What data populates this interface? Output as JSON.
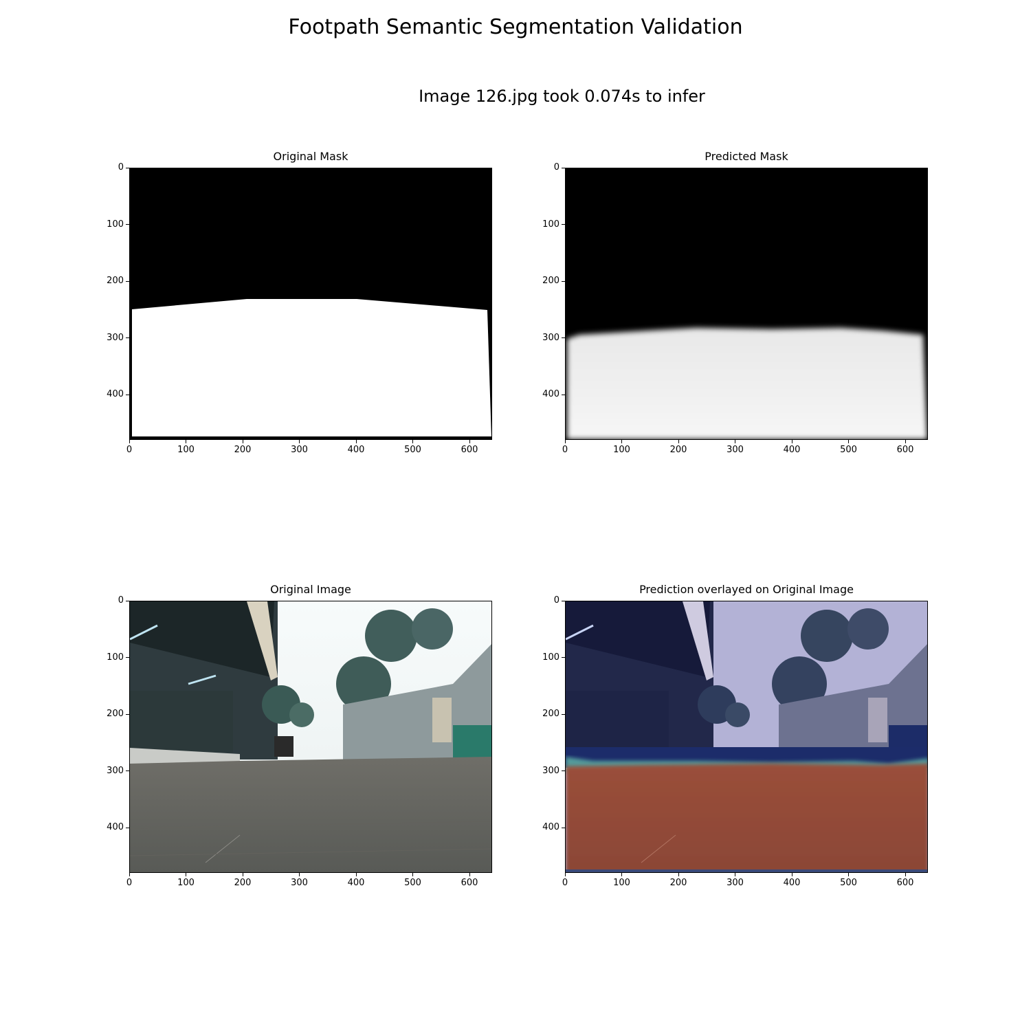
{
  "suptitle": "Footpath Semantic Segmentation Validation",
  "subtitle": "Image 126.jpg took 0.074s to infer",
  "panels": [
    {
      "title": "Original Mask"
    },
    {
      "title": "Predicted Mask"
    },
    {
      "title": "Original Image"
    },
    {
      "title": "Prediction overlayed on Original Image"
    }
  ],
  "axes": {
    "x_ticks": [
      "0",
      "100",
      "200",
      "300",
      "400",
      "500",
      "600"
    ],
    "y_ticks": [
      "0",
      "100",
      "200",
      "300",
      "400"
    ],
    "x_range": [
      0,
      640
    ],
    "y_range": [
      0,
      480
    ]
  }
}
